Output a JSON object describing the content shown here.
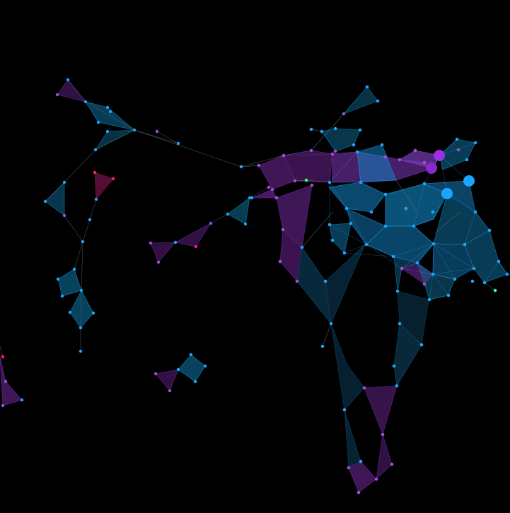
{
  "image": {
    "subject": "network-graph-visualization",
    "background_color": "#000000"
  },
  "palette": {
    "cyan": "#1aa6ff",
    "cyan_fill": "#0f6e9a",
    "purple": "#a24dd6",
    "purple_fill": "#5a1f7a",
    "magenta": "#ff1a8c",
    "green": "#33ff88",
    "edge": "#5a6b78"
  }
}
